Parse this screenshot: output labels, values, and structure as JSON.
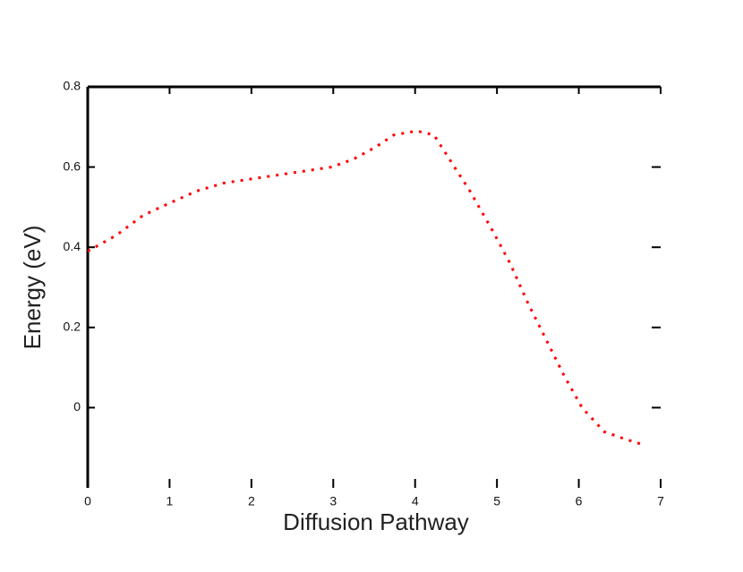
{
  "chart_data": {
    "type": "line",
    "x_label": "Diffusion Pathway",
    "y_label": "Energy (eV)",
    "x": [
      0,
      0.35,
      0.68,
      1.0,
      1.33,
      1.66,
      1.99,
      2.32,
      2.65,
      2.98,
      3.25,
      3.52,
      3.74,
      4.02,
      4.23,
      4.45,
      4.67,
      4.95,
      5.16,
      5.38,
      5.6,
      5.82,
      6.04,
      6.31,
      6.59,
      6.75
    ],
    "series": [
      {
        "color": "#ff0000",
        "values": [
          0.39,
          0.43,
          0.48,
          0.51,
          0.54,
          0.56,
          0.57,
          0.58,
          0.59,
          0.6,
          0.62,
          0.65,
          0.68,
          0.69,
          0.68,
          0.61,
          0.54,
          0.44,
          0.36,
          0.26,
          0.17,
          0.08,
          0.0,
          -0.06,
          -0.08,
          -0.09
        ]
      }
    ],
    "xlim": [
      0,
      7
    ],
    "xticks": [
      0,
      1,
      2,
      3,
      4,
      5,
      6,
      7
    ],
    "ylim": [
      -0.2,
      0.8
    ],
    "yticks": [
      0,
      0.2,
      0.4,
      0.6,
      0.8
    ]
  }
}
